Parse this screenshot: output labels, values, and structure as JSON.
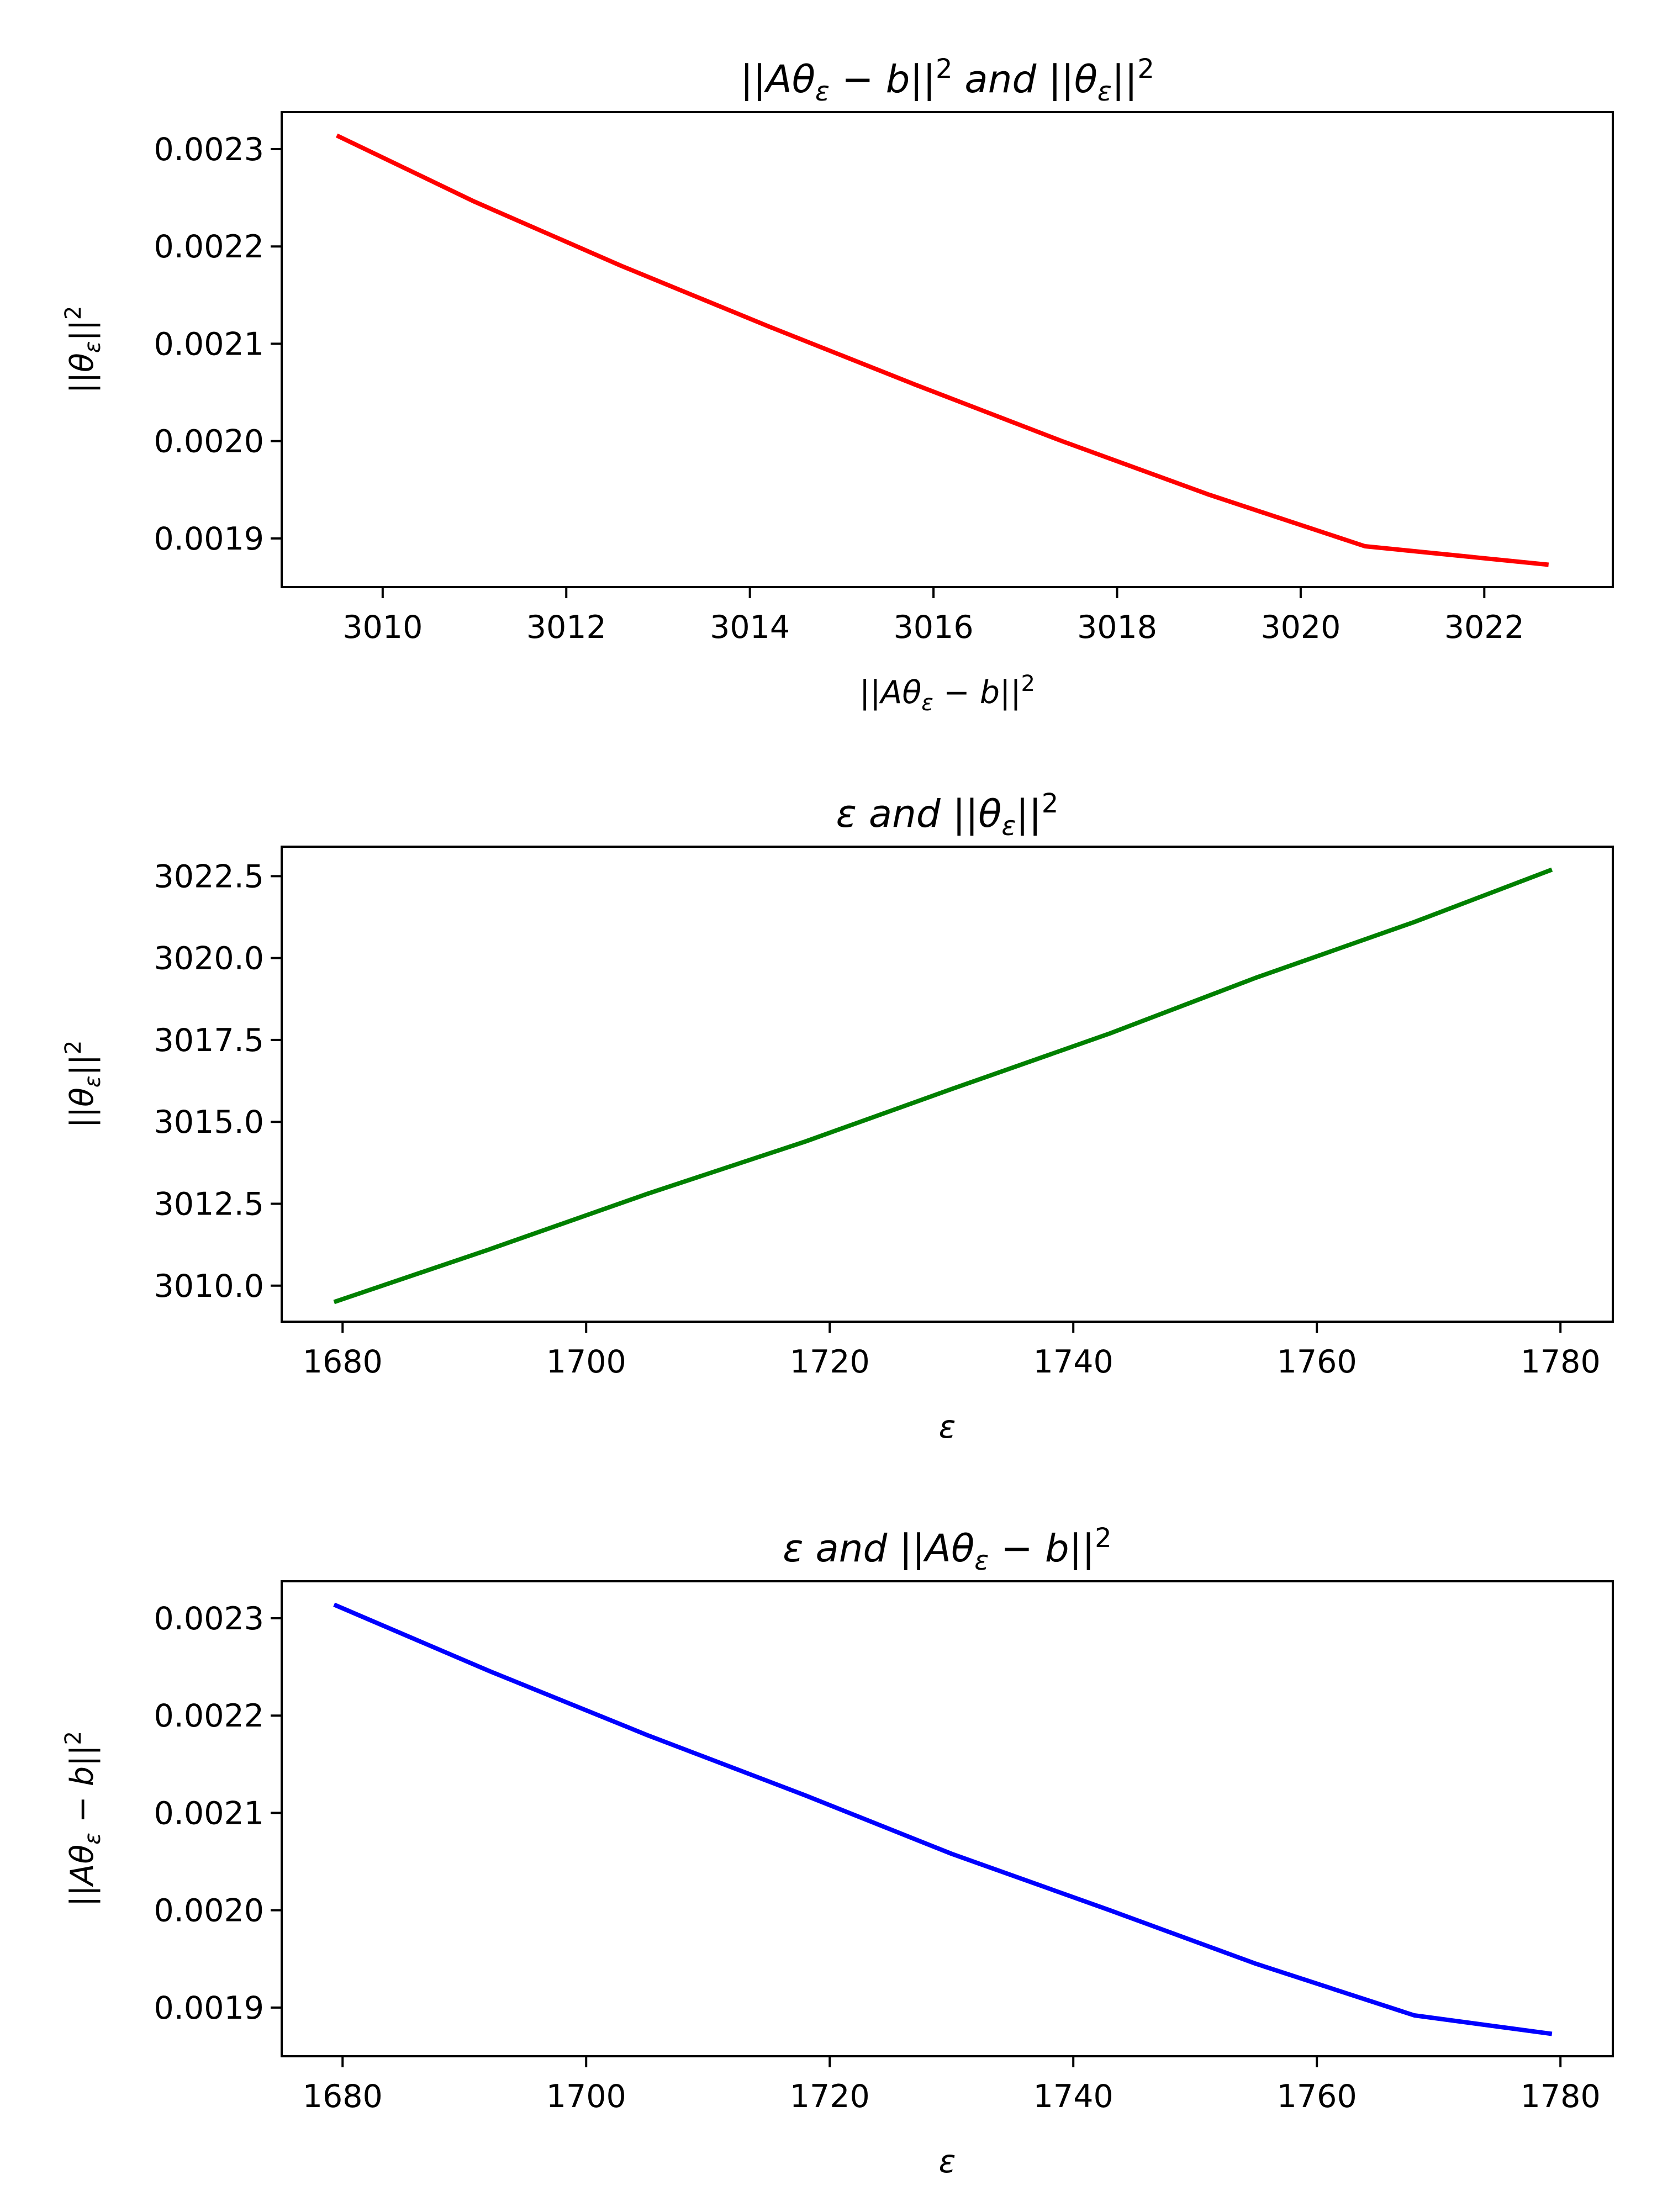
{
  "figure": {
    "charts": [
      {
        "title_parts": [
          {
            "t": "||",
            "c": "n"
          },
          {
            "t": "Aθ",
            "c": "i"
          },
          {
            "t": "ε",
            "c": "sub"
          },
          {
            "t": " − ",
            "c": "n"
          },
          {
            "t": "b",
            "c": "i"
          },
          {
            "t": "||",
            "c": "n"
          },
          {
            "t": "2",
            "c": "supsub"
          },
          {
            "t": " and ",
            "c": "i"
          },
          {
            "t": "||",
            "c": "n"
          },
          {
            "t": "θ",
            "c": "i"
          },
          {
            "t": "ε",
            "c": "sub"
          },
          {
            "t": "||",
            "c": "n"
          },
          {
            "t": "2",
            "c": "supsub"
          }
        ],
        "xlabel_parts": [
          {
            "t": "||",
            "c": "n"
          },
          {
            "t": "Aθ",
            "c": "i"
          },
          {
            "t": "ε",
            "c": "sub"
          },
          {
            "t": " − ",
            "c": "n"
          },
          {
            "t": "b",
            "c": "i"
          },
          {
            "t": "||",
            "c": "n"
          },
          {
            "t": "2",
            "c": "supsub"
          }
        ],
        "ylabel_parts": [
          {
            "t": "||",
            "c": "n"
          },
          {
            "t": "θ",
            "c": "i"
          },
          {
            "t": "ε",
            "c": "sub"
          },
          {
            "t": "||",
            "c": "n"
          },
          {
            "t": "2",
            "c": "supsub"
          }
        ]
      },
      {
        "title_parts": [
          {
            "t": "ε",
            "c": "i"
          },
          {
            "t": " and ",
            "c": "i"
          },
          {
            "t": "||",
            "c": "n"
          },
          {
            "t": "θ",
            "c": "i"
          },
          {
            "t": "ε",
            "c": "sub"
          },
          {
            "t": "||",
            "c": "n"
          },
          {
            "t": "2",
            "c": "supsub"
          }
        ],
        "xlabel_parts": [
          {
            "t": "ε",
            "c": "i"
          }
        ],
        "ylabel_parts": [
          {
            "t": "||",
            "c": "n"
          },
          {
            "t": "θ",
            "c": "i"
          },
          {
            "t": "ε",
            "c": "sub"
          },
          {
            "t": "||",
            "c": "n"
          },
          {
            "t": "2",
            "c": "supsub"
          }
        ]
      },
      {
        "title_parts": [
          {
            "t": "ε",
            "c": "i"
          },
          {
            "t": " and ",
            "c": "i"
          },
          {
            "t": "||",
            "c": "n"
          },
          {
            "t": "Aθ",
            "c": "i"
          },
          {
            "t": "ε",
            "c": "sub"
          },
          {
            "t": " − ",
            "c": "n"
          },
          {
            "t": "b",
            "c": "i"
          },
          {
            "t": "||",
            "c": "n"
          },
          {
            "t": "2",
            "c": "supsub"
          }
        ],
        "xlabel_parts": [
          {
            "t": "ε",
            "c": "i"
          }
        ],
        "ylabel_parts": [
          {
            "t": "||",
            "c": "n"
          },
          {
            "t": "Aθ",
            "c": "i"
          },
          {
            "t": "ε",
            "c": "sub"
          },
          {
            "t": " − ",
            "c": "n"
          },
          {
            "t": "b",
            "c": "i"
          },
          {
            "t": "||",
            "c": "n"
          },
          {
            "t": "2",
            "c": "supsub"
          }
        ]
      }
    ]
  },
  "chart_data": [
    {
      "type": "line",
      "title": "||Aθε − b||²₂ and ||θε||²₂",
      "xlabel": "||Aθε − b||²₂",
      "ylabel": "||θε||²₂",
      "xlim": [
        3008.9,
        3023.4
      ],
      "ylim": [
        0.00185,
        0.002338
      ],
      "xticks": [
        3010,
        3012,
        3014,
        3016,
        3018,
        3020,
        3022
      ],
      "xtick_labels": [
        "3010",
        "3012",
        "3014",
        "3016",
        "3018",
        "3020",
        "3022"
      ],
      "yticks": [
        0.0019,
        0.002,
        0.0021,
        0.0022,
        0.0023
      ],
      "ytick_labels": [
        "0.0019",
        "0.0020",
        "0.0021",
        "0.0022",
        "0.0023"
      ],
      "series": [
        {
          "color": "#ff0000",
          "x": [
            3009.5,
            3011.0,
            3012.6,
            3014.2,
            3015.8,
            3017.4,
            3019.0,
            3020.7,
            3022.7
          ],
          "y": [
            0.002314,
            0.002246,
            0.00218,
            0.002118,
            0.002058,
            0.002,
            0.001945,
            0.001892,
            0.001873
          ]
        }
      ]
    },
    {
      "type": "line",
      "title": "ε and ||θε||²₂",
      "xlabel": "ε",
      "ylabel": "||θε||²₂",
      "xlim": [
        1675,
        1784.3
      ],
      "ylim": [
        3008.9,
        3023.4
      ],
      "xticks": [
        1680,
        1700,
        1720,
        1740,
        1760,
        1780
      ],
      "xtick_labels": [
        "1680",
        "1700",
        "1720",
        "1740",
        "1760",
        "1780"
      ],
      "yticks": [
        3010.0,
        3012.5,
        3015.0,
        3017.5,
        3020.0,
        3022.5
      ],
      "ytick_labels": [
        "3010.0",
        "3012.5",
        "3015.0",
        "3017.5",
        "3020.0",
        "3022.5"
      ],
      "series": [
        {
          "color": "#008000",
          "x": [
            1679.3,
            1692,
            1705,
            1718,
            1730,
            1743,
            1755,
            1768,
            1779.3
          ],
          "y": [
            3009.5,
            3011.1,
            3012.8,
            3014.4,
            3016.0,
            3017.7,
            3019.4,
            3021.1,
            3022.7
          ]
        }
      ]
    },
    {
      "type": "line",
      "title": "ε and ||Aθε − b||²₂",
      "xlabel": "ε",
      "ylabel": "||Aθε − b||²₂",
      "xlim": [
        1675,
        1784.3
      ],
      "ylim": [
        0.00185,
        0.002338
      ],
      "xticks": [
        1680,
        1700,
        1720,
        1740,
        1760,
        1780
      ],
      "xtick_labels": [
        "1680",
        "1700",
        "1720",
        "1740",
        "1760",
        "1780"
      ],
      "yticks": [
        0.0019,
        0.002,
        0.0021,
        0.0022,
        0.0023
      ],
      "ytick_labels": [
        "0.0019",
        "0.0020",
        "0.0021",
        "0.0022",
        "0.0023"
      ],
      "series": [
        {
          "color": "#0000ff",
          "x": [
            1679.3,
            1692,
            1705,
            1718,
            1730,
            1743,
            1755,
            1768,
            1779.3
          ],
          "y": [
            0.002314,
            0.002246,
            0.00218,
            0.002118,
            0.002058,
            0.002,
            0.001945,
            0.001892,
            0.001873
          ]
        }
      ]
    }
  ]
}
